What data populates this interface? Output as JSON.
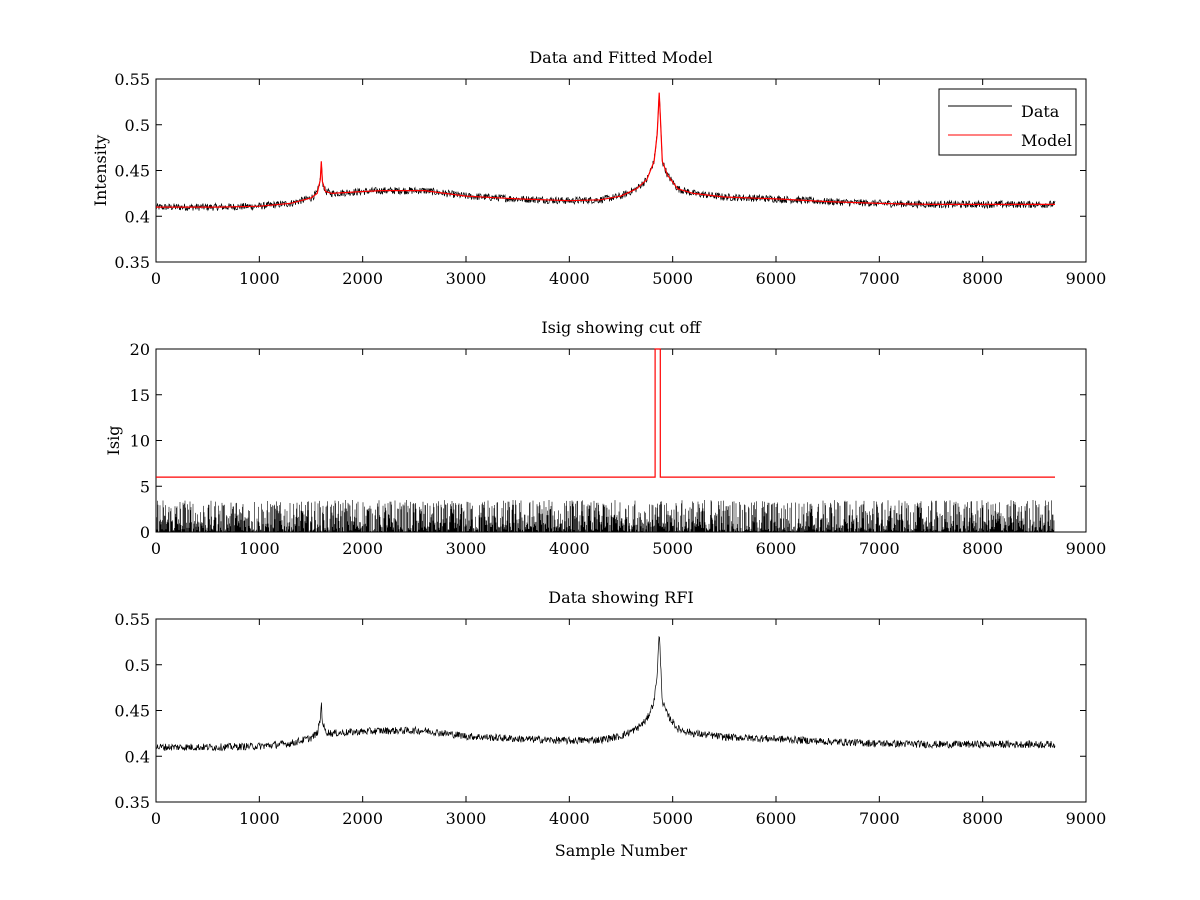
{
  "chart_data": [
    {
      "type": "line",
      "title": "Data and Fitted Model",
      "xlabel": "",
      "ylabel": "Intensity",
      "xlim": [
        0,
        9000
      ],
      "ylim": [
        0.35,
        0.55
      ],
      "xticks": [
        0,
        1000,
        2000,
        3000,
        4000,
        5000,
        6000,
        7000,
        8000,
        9000
      ],
      "yticks": [
        0.35,
        0.4,
        0.45,
        0.5,
        0.55
      ],
      "ytick_labels": [
        "0.35",
        "0.4",
        "0.45",
        "0.5",
        "0.55"
      ],
      "grid": false,
      "legend": {
        "position": "top-right",
        "entries": [
          "Data",
          "Model"
        ]
      },
      "series": [
        {
          "name": "Data",
          "color": "#000000",
          "noise": 0.004,
          "x": [
            0,
            200,
            600,
            1000,
            1300,
            1500,
            1560,
            1590,
            1600,
            1610,
            1640,
            1700,
            2000,
            2200,
            2600,
            2800,
            3000,
            3500,
            4000,
            4300,
            4500,
            4650,
            4750,
            4820,
            4850,
            4870,
            4880,
            4900,
            4950,
            5050,
            5200,
            5500,
            6000,
            6500,
            7000,
            7500,
            8000,
            8700
          ],
          "y": [
            0.41,
            0.41,
            0.41,
            0.411,
            0.414,
            0.42,
            0.425,
            0.44,
            0.46,
            0.438,
            0.427,
            0.425,
            0.427,
            0.428,
            0.428,
            0.425,
            0.422,
            0.419,
            0.417,
            0.418,
            0.422,
            0.43,
            0.44,
            0.46,
            0.49,
            0.535,
            0.51,
            0.46,
            0.445,
            0.43,
            0.425,
            0.421,
            0.419,
            0.416,
            0.414,
            0.413,
            0.413,
            0.413
          ]
        },
        {
          "name": "Model",
          "color": "#ff0000",
          "noise": 0,
          "x": [
            0,
            200,
            600,
            1000,
            1300,
            1500,
            1560,
            1590,
            1600,
            1610,
            1640,
            1700,
            2000,
            2200,
            2600,
            2800,
            3000,
            3500,
            4000,
            4300,
            4500,
            4650,
            4750,
            4820,
            4850,
            4870,
            4880,
            4900,
            4950,
            5050,
            5200,
            5500,
            6000,
            6500,
            7000,
            7500,
            8000,
            8700
          ],
          "y": [
            0.41,
            0.41,
            0.41,
            0.411,
            0.414,
            0.42,
            0.425,
            0.44,
            0.46,
            0.438,
            0.427,
            0.425,
            0.427,
            0.428,
            0.428,
            0.425,
            0.422,
            0.419,
            0.417,
            0.418,
            0.422,
            0.43,
            0.44,
            0.46,
            0.49,
            0.535,
            0.51,
            0.46,
            0.445,
            0.43,
            0.425,
            0.421,
            0.419,
            0.416,
            0.414,
            0.413,
            0.413,
            0.413
          ]
        }
      ]
    },
    {
      "type": "line",
      "title": "Isig showing cut off",
      "xlabel": "",
      "ylabel": "Isig",
      "xlim": [
        0,
        9000
      ],
      "ylim": [
        0,
        20
      ],
      "xticks": [
        0,
        1000,
        2000,
        3000,
        4000,
        5000,
        6000,
        7000,
        8000,
        9000
      ],
      "yticks": [
        0,
        5,
        10,
        15,
        20
      ],
      "ytick_labels": [
        "0",
        "5",
        "10",
        "15",
        "20"
      ],
      "grid": false,
      "series": [
        {
          "name": "Isig",
          "color": "#000000",
          "kind": "noise-bars",
          "mean": 0.9,
          "max": 3.5,
          "x": [
            0,
            8700
          ]
        },
        {
          "name": "Cut off",
          "color": "#ff0000",
          "x": [
            0,
            4830,
            4830,
            4880,
            4880,
            8700
          ],
          "y": [
            6,
            6,
            20,
            20,
            6,
            6
          ]
        }
      ]
    },
    {
      "type": "line",
      "title": "Data showing RFI",
      "xlabel": "Sample Number",
      "ylabel": "",
      "xlim": [
        0,
        9000
      ],
      "ylim": [
        0.35,
        0.55
      ],
      "xticks": [
        0,
        1000,
        2000,
        3000,
        4000,
        5000,
        6000,
        7000,
        8000,
        9000
      ],
      "yticks": [
        0.35,
        0.4,
        0.45,
        0.5,
        0.55
      ],
      "ytick_labels": [
        "0.35",
        "0.4",
        "0.45",
        "0.5",
        "0.55"
      ],
      "grid": false,
      "series": [
        {
          "name": "Data",
          "color": "#000000",
          "noise": 0.004,
          "x": [
            0,
            200,
            600,
            1000,
            1300,
            1500,
            1560,
            1590,
            1600,
            1610,
            1640,
            1700,
            2000,
            2200,
            2600,
            2800,
            3000,
            3500,
            4000,
            4300,
            4500,
            4650,
            4750,
            4820,
            4850,
            4870,
            4880,
            4900,
            4950,
            5050,
            5200,
            5500,
            6000,
            6500,
            7000,
            7500,
            8000,
            8700
          ],
          "y": [
            0.41,
            0.41,
            0.41,
            0.411,
            0.414,
            0.42,
            0.425,
            0.44,
            0.46,
            0.438,
            0.427,
            0.425,
            0.427,
            0.428,
            0.428,
            0.425,
            0.422,
            0.419,
            0.417,
            0.418,
            0.422,
            0.43,
            0.44,
            0.46,
            0.49,
            0.535,
            0.51,
            0.46,
            0.445,
            0.43,
            0.425,
            0.421,
            0.419,
            0.416,
            0.414,
            0.413,
            0.413,
            0.413
          ]
        }
      ]
    }
  ]
}
